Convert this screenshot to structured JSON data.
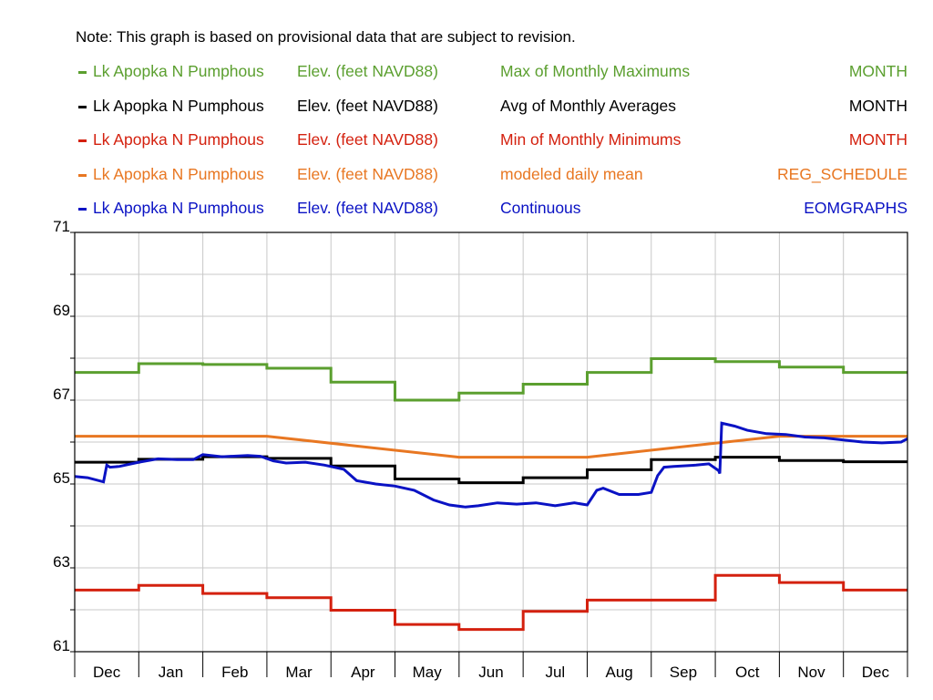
{
  "note": "Note: This graph is based on provisional data that are subject to revision.",
  "legend": [
    {
      "name": "Lk Apopka N Pumphous",
      "parameter": "Elev. (feet NAVD88)",
      "statistic": "Max of Monthly Maximums",
      "tag": "MONTH",
      "color": "#5b9f2f"
    },
    {
      "name": "Lk Apopka N Pumphous",
      "parameter": "Elev. (feet NAVD88)",
      "statistic": "Avg of Monthly Averages",
      "tag": "MONTH",
      "color": "#000000"
    },
    {
      "name": "Lk Apopka N Pumphous",
      "parameter": "Elev. (feet NAVD88)",
      "statistic": "Min of Monthly Minimums",
      "tag": "MONTH",
      "color": "#d4210f"
    },
    {
      "name": "Lk Apopka N Pumphous",
      "parameter": "Elev. (feet NAVD88)",
      "statistic": "modeled daily mean",
      "tag": "REG_SCHEDULE",
      "color": "#e87722"
    },
    {
      "name": "Lk Apopka N Pumphous",
      "parameter": "Elev. (feet NAVD88)",
      "statistic": "Continuous",
      "tag": "EOMGRAPHS",
      "color": "#0a12c4"
    }
  ],
  "chart_data": {
    "type": "line",
    "x_unit": "month",
    "categories": [
      "Dec",
      "Jan",
      "Feb",
      "Mar",
      "Apr",
      "May",
      "Jun",
      "Jul",
      "Aug",
      "Sep",
      "Oct",
      "Nov",
      "Dec"
    ],
    "ylim": [
      61,
      71
    ],
    "yticks": [
      61,
      63,
      65,
      67,
      69,
      71
    ],
    "grid": true,
    "series": [
      {
        "name": "Max of Monthly Maximums",
        "color": "#5b9f2f",
        "style": "step",
        "values": [
          67.66,
          67.87,
          67.85,
          67.76,
          67.43,
          67.0,
          67.17,
          67.38,
          67.66,
          67.99,
          67.92,
          67.79,
          67.66
        ]
      },
      {
        "name": "Avg of Monthly Averages",
        "color": "#000000",
        "style": "step",
        "values": [
          65.52,
          65.59,
          65.65,
          65.61,
          65.43,
          65.12,
          65.03,
          65.15,
          65.34,
          65.58,
          65.64,
          65.56,
          65.53
        ]
      },
      {
        "name": "Min of Monthly Minimums",
        "color": "#d4210f",
        "style": "step",
        "values": [
          62.47,
          62.58,
          62.39,
          62.29,
          61.99,
          61.65,
          61.53,
          61.96,
          62.23,
          62.23,
          62.82,
          62.65,
          62.47
        ]
      },
      {
        "name": "modeled daily mean",
        "color": "#e87722",
        "style": "line",
        "x": [
          0,
          3.0,
          6.0,
          8.0,
          11.0,
          13.0
        ],
        "values": [
          66.14,
          66.14,
          65.64,
          65.64,
          66.14,
          66.14
        ]
      },
      {
        "name": "Continuous",
        "color": "#0a12c4",
        "style": "line",
        "x": [
          0,
          0.2,
          0.45,
          0.5,
          0.55,
          0.7,
          1.0,
          1.3,
          1.6,
          1.85,
          2.0,
          2.3,
          2.7,
          2.9,
          3.1,
          3.3,
          3.6,
          3.9,
          4.2,
          4.4,
          4.7,
          5.0,
          5.3,
          5.6,
          5.85,
          6.1,
          6.3,
          6.6,
          6.9,
          7.2,
          7.5,
          7.8,
          8.0,
          8.15,
          8.25,
          8.5,
          8.8,
          9.0,
          9.1,
          9.2,
          9.35,
          9.7,
          9.9,
          10.05,
          10.07,
          10.1,
          10.3,
          10.5,
          10.8,
          11.1,
          11.4,
          11.7,
          12.0,
          12.3,
          12.6,
          12.9,
          13.0
        ],
        "values": [
          65.18,
          65.15,
          65.05,
          65.45,
          65.4,
          65.42,
          65.52,
          65.6,
          65.58,
          65.58,
          65.7,
          65.65,
          65.68,
          65.66,
          65.55,
          65.5,
          65.52,
          65.45,
          65.35,
          65.08,
          65.0,
          64.95,
          64.85,
          64.62,
          64.5,
          64.45,
          64.48,
          64.55,
          64.52,
          64.55,
          64.48,
          64.55,
          64.5,
          64.85,
          64.9,
          64.75,
          64.75,
          64.8,
          65.2,
          65.4,
          65.42,
          65.45,
          65.48,
          65.32,
          65.25,
          66.45,
          66.38,
          66.28,
          66.2,
          66.18,
          66.12,
          66.1,
          66.05,
          66.0,
          65.98,
          66.0,
          66.08
        ]
      }
    ]
  }
}
